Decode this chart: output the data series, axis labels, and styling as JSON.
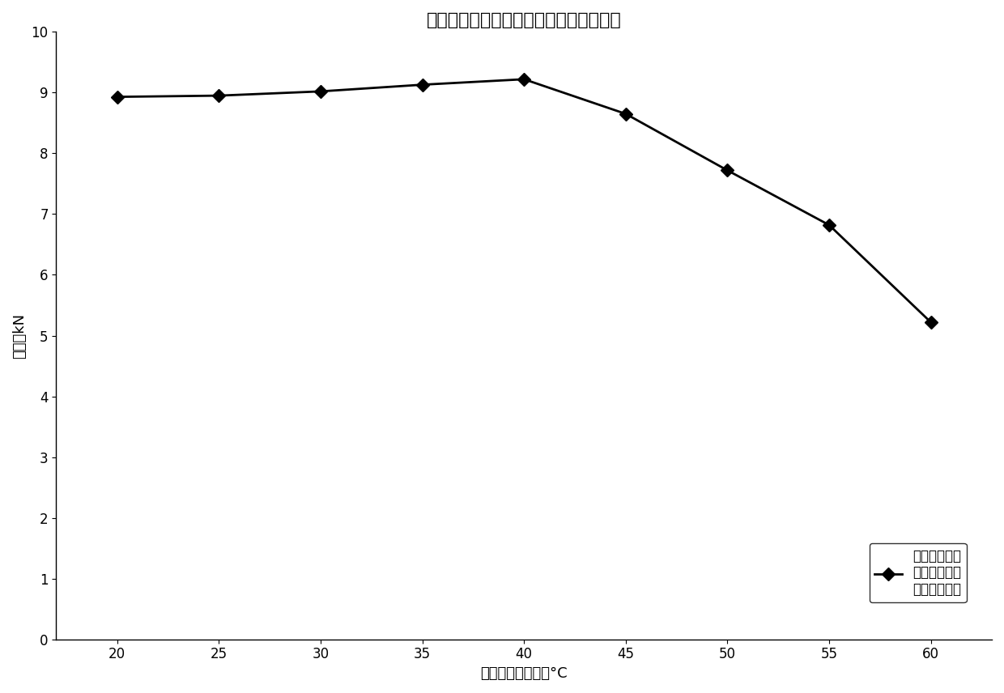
{
  "title": "马歇尔试件在不同养护温度下的强度对比",
  "xlabel": "恒温水槽养护温度°C",
  "ylabel": "稳定度kN",
  "x_values": [
    20,
    25,
    30,
    35,
    40,
    45,
    50,
    55,
    60
  ],
  "y_values": [
    8.93,
    8.95,
    9.02,
    9.13,
    9.22,
    8.65,
    7.72,
    6.82,
    5.22
  ],
  "xlim": [
    17,
    63
  ],
  "ylim": [
    0,
    10
  ],
  "xticks": [
    20,
    25,
    30,
    35,
    40,
    45,
    50,
    55,
    60
  ],
  "yticks": [
    0,
    1,
    2,
    3,
    4,
    5,
    6,
    7,
    8,
    9,
    10
  ],
  "line_color": "#000000",
  "marker": "D",
  "marker_size": 8,
  "marker_facecolor": "#000000",
  "legend_label": "马歇尔试件在\n不同养护温度\n下的强度对比",
  "title_fontsize": 16,
  "label_fontsize": 13,
  "tick_fontsize": 12,
  "legend_fontsize": 12,
  "background_color": "#ffffff"
}
